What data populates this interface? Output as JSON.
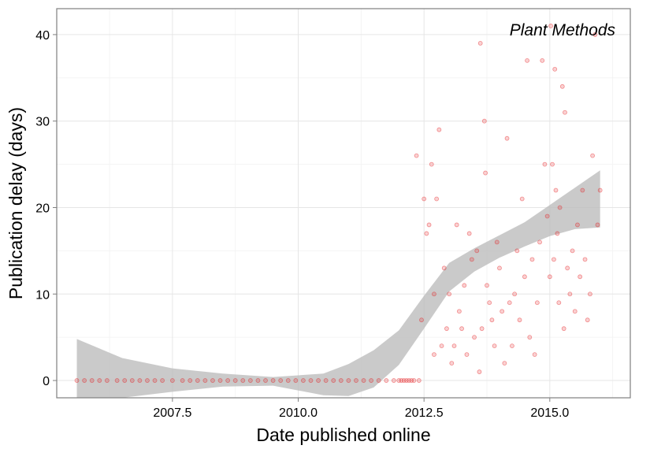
{
  "chart_data": {
    "type": "scatter",
    "title": "Plant Methods",
    "xlabel": "Date published online",
    "ylabel": "Publication delay (days)",
    "xlim": [
      2005.2,
      2016.6
    ],
    "ylim": [
      -2,
      43
    ],
    "x_ticks": [
      2007.5,
      2010.0,
      2012.5,
      2015.0
    ],
    "x_tick_labels": [
      "2007.5",
      "2010.0",
      "2012.5",
      "2015.0"
    ],
    "y_ticks": [
      0,
      10,
      20,
      30,
      40
    ],
    "y_tick_labels": [
      "0",
      "10",
      "20",
      "30",
      "40"
    ],
    "grid": true,
    "point_color": "#e41a1c",
    "band_color": "#bdbdbd",
    "series": [
      {
        "values": [
          [
            2005.6,
            0
          ],
          [
            2005.75,
            0
          ],
          [
            2005.9,
            0
          ],
          [
            2006.05,
            0
          ],
          [
            2006.2,
            0
          ],
          [
            2006.4,
            0
          ],
          [
            2006.55,
            0
          ],
          [
            2006.7,
            0
          ],
          [
            2006.85,
            0
          ],
          [
            2007.0,
            0
          ],
          [
            2007.15,
            0
          ],
          [
            2007.3,
            0
          ],
          [
            2007.5,
            0
          ],
          [
            2007.7,
            0
          ],
          [
            2007.85,
            0
          ],
          [
            2008.0,
            0
          ],
          [
            2008.15,
            0
          ],
          [
            2008.3,
            0
          ],
          [
            2008.45,
            0
          ],
          [
            2008.6,
            0
          ],
          [
            2008.75,
            0
          ],
          [
            2008.9,
            0
          ],
          [
            2009.05,
            0
          ],
          [
            2009.2,
            0
          ],
          [
            2009.35,
            0
          ],
          [
            2009.5,
            0
          ],
          [
            2009.65,
            0
          ],
          [
            2009.8,
            0
          ],
          [
            2009.95,
            0
          ],
          [
            2010.1,
            0
          ],
          [
            2010.25,
            0
          ],
          [
            2010.4,
            0
          ],
          [
            2010.55,
            0
          ],
          [
            2010.7,
            0
          ],
          [
            2010.85,
            0
          ],
          [
            2011.0,
            0
          ],
          [
            2011.15,
            0
          ],
          [
            2011.3,
            0
          ],
          [
            2011.45,
            0
          ],
          [
            2011.6,
            0
          ],
          [
            2011.75,
            0
          ],
          [
            2011.9,
            0
          ],
          [
            2012.0,
            0
          ],
          [
            2012.05,
            0
          ],
          [
            2012.1,
            0
          ],
          [
            2012.15,
            0
          ],
          [
            2012.2,
            0
          ],
          [
            2012.25,
            0
          ],
          [
            2012.3,
            0
          ],
          [
            2012.4,
            0
          ],
          [
            2012.35,
            26
          ],
          [
            2012.45,
            7
          ],
          [
            2012.5,
            21
          ],
          [
            2012.55,
            17
          ],
          [
            2012.6,
            18
          ],
          [
            2012.65,
            25
          ],
          [
            2012.7,
            10
          ],
          [
            2012.7,
            3
          ],
          [
            2012.75,
            21
          ],
          [
            2012.8,
            29
          ],
          [
            2012.85,
            4
          ],
          [
            2012.9,
            13
          ],
          [
            2012.95,
            6
          ],
          [
            2013.0,
            10
          ],
          [
            2013.05,
            2
          ],
          [
            2013.1,
            4
          ],
          [
            2013.15,
            18
          ],
          [
            2013.2,
            8
          ],
          [
            2013.25,
            6
          ],
          [
            2013.3,
            11
          ],
          [
            2013.35,
            3
          ],
          [
            2013.4,
            17
          ],
          [
            2013.45,
            14
          ],
          [
            2013.5,
            5
          ],
          [
            2013.55,
            15
          ],
          [
            2013.6,
            1
          ],
          [
            2013.62,
            39
          ],
          [
            2013.65,
            6
          ],
          [
            2013.7,
            30
          ],
          [
            2013.72,
            24
          ],
          [
            2013.75,
            11
          ],
          [
            2013.8,
            9
          ],
          [
            2013.85,
            7
          ],
          [
            2013.9,
            4
          ],
          [
            2013.95,
            16
          ],
          [
            2014.0,
            13
          ],
          [
            2014.05,
            8
          ],
          [
            2014.1,
            2
          ],
          [
            2014.15,
            28
          ],
          [
            2014.2,
            9
          ],
          [
            2014.25,
            4
          ],
          [
            2014.3,
            10
          ],
          [
            2014.35,
            15
          ],
          [
            2014.4,
            7
          ],
          [
            2014.45,
            21
          ],
          [
            2014.5,
            12
          ],
          [
            2014.55,
            37
          ],
          [
            2014.6,
            5
          ],
          [
            2014.65,
            14
          ],
          [
            2014.7,
            3
          ],
          [
            2014.75,
            9
          ],
          [
            2014.8,
            16
          ],
          [
            2014.85,
            37
          ],
          [
            2014.9,
            25
          ],
          [
            2014.95,
            19
          ],
          [
            2015.0,
            12
          ],
          [
            2015.02,
            41
          ],
          [
            2015.05,
            25
          ],
          [
            2015.08,
            14
          ],
          [
            2015.1,
            36
          ],
          [
            2015.12,
            22
          ],
          [
            2015.15,
            17
          ],
          [
            2015.18,
            9
          ],
          [
            2015.2,
            20
          ],
          [
            2015.25,
            34
          ],
          [
            2015.28,
            6
          ],
          [
            2015.3,
            31
          ],
          [
            2015.35,
            13
          ],
          [
            2015.4,
            10
          ],
          [
            2015.45,
            15
          ],
          [
            2015.5,
            8
          ],
          [
            2015.55,
            18
          ],
          [
            2015.6,
            12
          ],
          [
            2015.65,
            22
          ],
          [
            2015.7,
            14
          ],
          [
            2015.75,
            7
          ],
          [
            2015.8,
            10
          ],
          [
            2015.85,
            26
          ],
          [
            2015.9,
            40
          ],
          [
            2015.95,
            18
          ],
          [
            2016.0,
            22
          ]
        ]
      }
    ],
    "smooth_band": [
      {
        "x": 2005.6,
        "lo": -4.0,
        "hi": 4.8
      },
      {
        "x": 2006.5,
        "lo": -2.0,
        "hi": 2.6
      },
      {
        "x": 2007.5,
        "lo": -1.3,
        "hi": 1.4
      },
      {
        "x": 2008.5,
        "lo": -0.7,
        "hi": 0.8
      },
      {
        "x": 2009.5,
        "lo": -0.6,
        "hi": 0.4
      },
      {
        "x": 2010.5,
        "lo": -1.7,
        "hi": 0.8
      },
      {
        "x": 2011.0,
        "lo": -1.8,
        "hi": 1.9
      },
      {
        "x": 2011.5,
        "lo": -0.8,
        "hi": 3.5
      },
      {
        "x": 2012.0,
        "lo": 1.8,
        "hi": 5.8
      },
      {
        "x": 2012.5,
        "lo": 6.0,
        "hi": 9.8
      },
      {
        "x": 2013.0,
        "lo": 10.3,
        "hi": 13.6
      },
      {
        "x": 2013.5,
        "lo": 12.6,
        "hi": 15.3
      },
      {
        "x": 2014.0,
        "lo": 14.2,
        "hi": 16.8
      },
      {
        "x": 2014.5,
        "lo": 15.5,
        "hi": 18.3
      },
      {
        "x": 2015.0,
        "lo": 16.7,
        "hi": 20.3
      },
      {
        "x": 2015.5,
        "lo": 17.5,
        "hi": 22.3
      },
      {
        "x": 2016.0,
        "lo": 17.7,
        "hi": 24.3
      }
    ]
  }
}
